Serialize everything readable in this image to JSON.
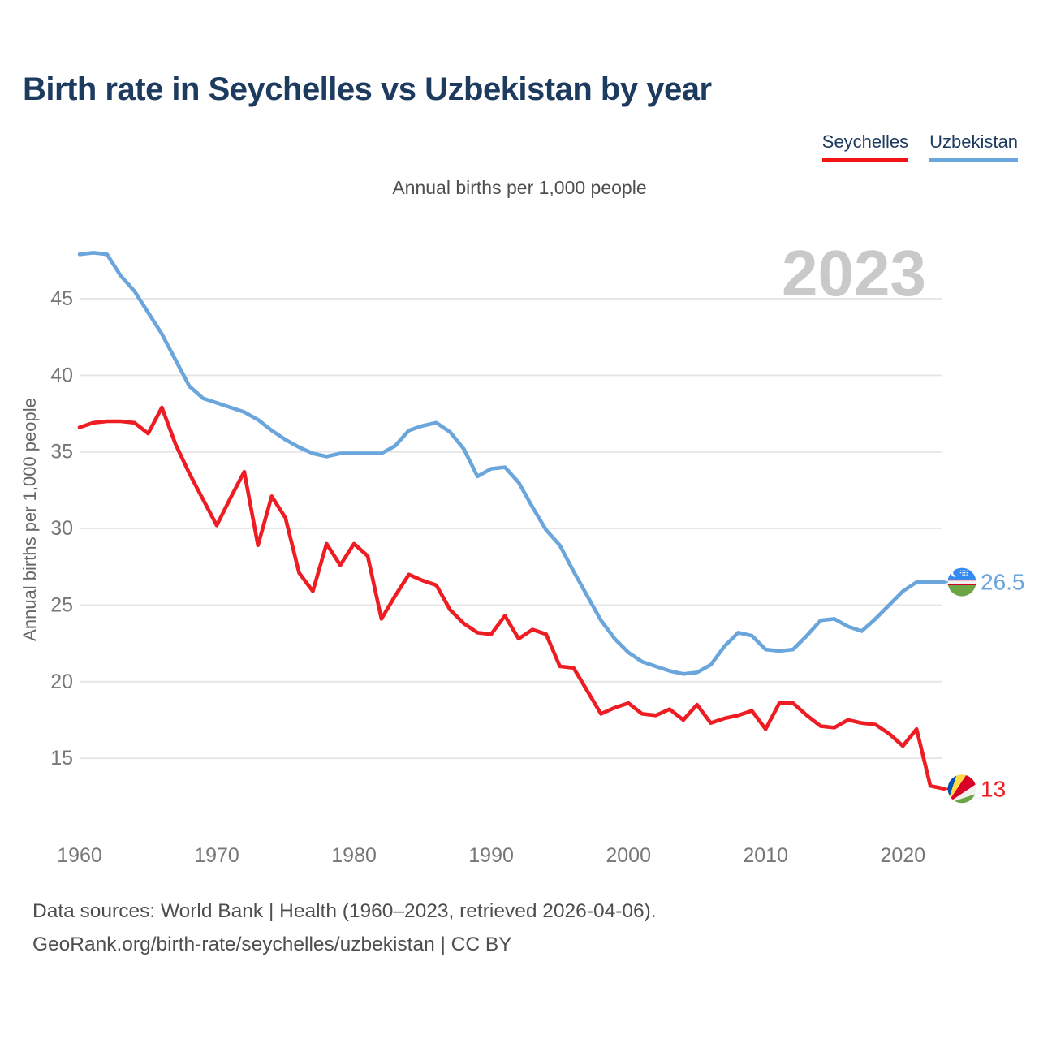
{
  "title": "Birth rate in Seychelles vs Uzbekistan by year",
  "subtitle": "Annual births per 1,000 people",
  "watermark": "2023",
  "legend": [
    {
      "label": "Seychelles",
      "color": "#f11414"
    },
    {
      "label": "Uzbekistan",
      "color": "#6aa5dc"
    }
  ],
  "footer": {
    "line1": "Data sources: World Bank | Health (1960–2023, retrieved 2026-04-06).",
    "line2": "GeoRank.org/birth-rate/seychelles/uzbekistan | CC BY"
  },
  "colors": {
    "seychelles_line": "#ee1c23",
    "uzbekistan_line": "#6aa5dc",
    "title_text": "#1d3a5f",
    "axis_text": "#777777",
    "gridline": "#e6e6e6",
    "watermark": "#c9c9c9"
  },
  "chart_data": {
    "type": "line",
    "title": "Birth rate in Seychelles vs Uzbekistan by year",
    "xlabel": "",
    "ylabel": "Annual births per 1,000 people",
    "grid": "horizontal",
    "legend_position": "top-right",
    "x_ticks": [
      1960,
      1970,
      1980,
      1990,
      2000,
      2010,
      2020
    ],
    "y_ticks": [
      15,
      20,
      25,
      30,
      35,
      40,
      45
    ],
    "ylim": [
      11.8,
      49.5
    ],
    "x": [
      1960,
      1961,
      1962,
      1963,
      1964,
      1965,
      1966,
      1967,
      1968,
      1969,
      1970,
      1971,
      1972,
      1973,
      1974,
      1975,
      1976,
      1977,
      1978,
      1979,
      1980,
      1981,
      1982,
      1983,
      1984,
      1985,
      1986,
      1987,
      1988,
      1989,
      1990,
      1991,
      1992,
      1993,
      1994,
      1995,
      1996,
      1997,
      1998,
      1999,
      2000,
      2001,
      2002,
      2003,
      2004,
      2005,
      2006,
      2007,
      2008,
      2009,
      2010,
      2011,
      2012,
      2013,
      2014,
      2015,
      2016,
      2017,
      2018,
      2019,
      2020,
      2021,
      2022,
      2023
    ],
    "series": [
      {
        "name": "Uzbekistan",
        "color": "#6aa5dc",
        "flag": "uzbekistan",
        "end_label": "26.5",
        "end_value": 26.5,
        "values": [
          47.9,
          48.0,
          47.9,
          46.5,
          45.5,
          44.1,
          42.7,
          41.0,
          39.3,
          38.5,
          38.2,
          37.9,
          37.6,
          37.1,
          36.4,
          35.8,
          35.3,
          34.9,
          34.7,
          34.9,
          34.9,
          34.9,
          34.9,
          35.4,
          36.4,
          36.7,
          36.9,
          36.3,
          35.2,
          33.4,
          33.9,
          34.0,
          33.0,
          31.4,
          29.9,
          28.9,
          27.2,
          25.6,
          24.0,
          22.8,
          21.9,
          21.3,
          21.0,
          20.7,
          20.5,
          20.6,
          21.1,
          22.3,
          23.2,
          23.0,
          22.1,
          22.0,
          22.1,
          23.0,
          24.0,
          24.1,
          23.6,
          23.3,
          24.1,
          25.0,
          25.9,
          26.5,
          26.5,
          26.5
        ]
      },
      {
        "name": "Seychelles",
        "color": "#ee1c23",
        "flag": "seychelles",
        "end_label": "13",
        "end_value": 13.0,
        "values": [
          36.6,
          36.9,
          37.0,
          37.0,
          36.9,
          36.2,
          37.9,
          35.5,
          33.6,
          31.9,
          30.2,
          32.0,
          33.7,
          28.9,
          32.1,
          30.7,
          27.1,
          25.9,
          29.0,
          27.6,
          29.0,
          28.2,
          24.1,
          25.6,
          27.0,
          26.6,
          26.3,
          24.7,
          23.8,
          23.2,
          23.1,
          24.3,
          22.8,
          23.4,
          23.1,
          21.0,
          20.9,
          19.4,
          17.9,
          18.3,
          18.6,
          17.9,
          17.8,
          18.2,
          17.5,
          18.5,
          17.3,
          17.6,
          17.8,
          18.1,
          16.9,
          18.6,
          18.6,
          17.8,
          17.1,
          17.0,
          17.5,
          17.3,
          17.2,
          16.6,
          15.8,
          16.9,
          13.2,
          13.0
        ]
      }
    ]
  }
}
